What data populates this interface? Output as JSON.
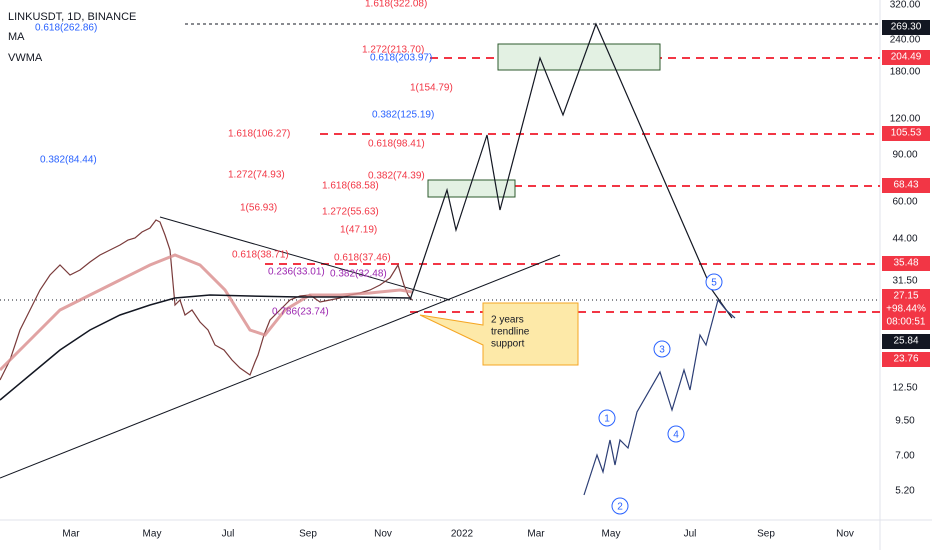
{
  "header": {
    "symbol": "LINKUSDT, 1D, BINANCE",
    "indicators": [
      "MA",
      "VWMA"
    ]
  },
  "price_axis": [
    "320.00",
    "240.00",
    "180.00",
    "120.00",
    "90.00",
    "60.00",
    "44.00",
    "31.50",
    "12.50",
    "9.50",
    "7.00",
    "5.20"
  ],
  "time_axis": [
    "Mar",
    "May",
    "Jul",
    "Sep",
    "Nov",
    "2022",
    "Mar",
    "May",
    "Jul",
    "Sep",
    "Nov"
  ],
  "price_badges": [
    {
      "lines": [
        "269.30"
      ],
      "color": "#131722"
    },
    {
      "lines": [
        "204.49"
      ],
      "color": "#f23645"
    },
    {
      "lines": [
        "105.53"
      ],
      "color": "#f23645"
    },
    {
      "lines": [
        "68.43"
      ],
      "color": "#f23645"
    },
    {
      "lines": [
        "35.48"
      ],
      "color": "#f23645"
    },
    {
      "lines": [
        "27.15",
        "+98.44%",
        "08:00:51"
      ],
      "color": "#f23645"
    },
    {
      "lines": [
        "25.84"
      ],
      "color": "#131722"
    },
    {
      "lines": [
        "23.76"
      ],
      "color": "#f23645"
    }
  ],
  "fib_levels": [
    {
      "label": "1.618(322.08)",
      "color": "#f23645"
    },
    {
      "label": "0.618(262.86)",
      "color": "#2962ff"
    },
    {
      "label": "1.272(213.70)",
      "color": "#f23645"
    },
    {
      "label": "0.618(203.97)",
      "color": "#2962ff"
    },
    {
      "label": "1(154.79)",
      "color": "#f23645"
    },
    {
      "label": "0.382(125.19)",
      "color": "#2962ff"
    },
    {
      "label": "1.618(106.27)",
      "color": "#f23645"
    },
    {
      "label": "0.618(98.41)",
      "color": "#f23645"
    },
    {
      "label": "0.382(84.44)",
      "color": "#2962ff"
    },
    {
      "label": "1.272(74.93)",
      "color": "#f23645"
    },
    {
      "label": "0.382(74.39)",
      "color": "#f23645"
    },
    {
      "label": "1.618(68.58)",
      "color": "#f23645"
    },
    {
      "label": "1(56.93)",
      "color": "#f23645"
    },
    {
      "label": "1.272(55.63)",
      "color": "#f23645"
    },
    {
      "label": "1(47.19)",
      "color": "#f23645"
    },
    {
      "label": "0.618(38.71)",
      "color": "#f23645"
    },
    {
      "label": "0.618(37.46)",
      "color": "#f23645"
    },
    {
      "label": "0.236(33.01)",
      "color": "#9c27b0"
    },
    {
      "label": "0.382(32.48)",
      "color": "#9c27b0"
    },
    {
      "label": "0.786(23.74)",
      "color": "#9c27b0"
    }
  ],
  "callout": [
    "2 years",
    "trendline",
    "support"
  ],
  "waves": [
    "1",
    "2",
    "3",
    "4",
    "5"
  ]
}
